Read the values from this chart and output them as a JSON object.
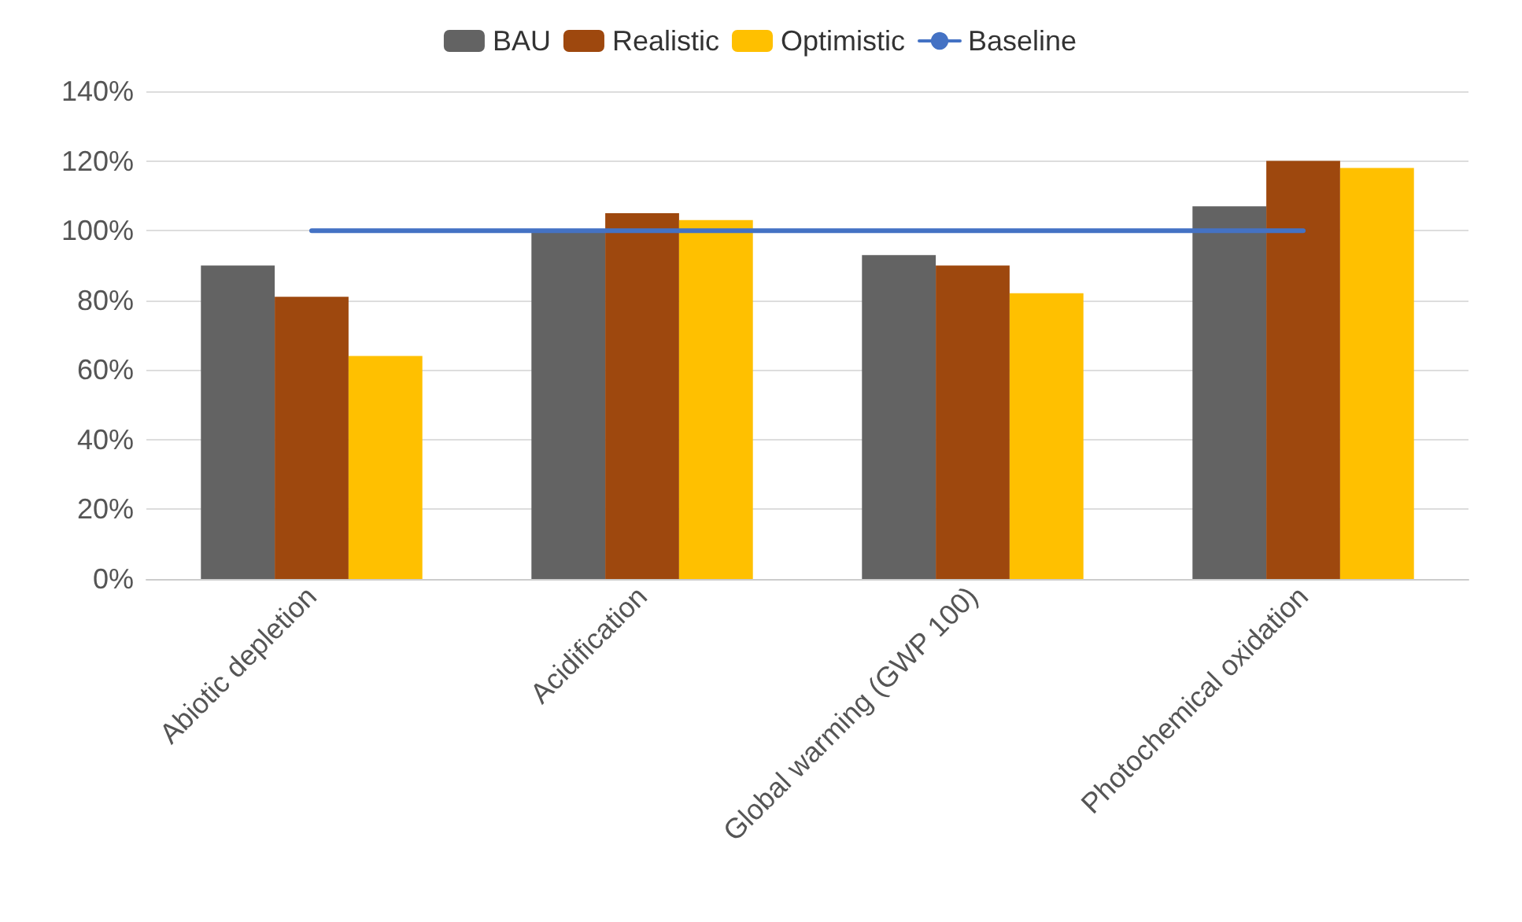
{
  "chart_data": {
    "type": "bar",
    "categories": [
      "Abiotic depletion",
      "Acidification",
      "Global warming (GWP 100)",
      "Photochemical oxidation"
    ],
    "series": [
      {
        "name": "BAU",
        "color": "#636363",
        "values": [
          90,
          100,
          93,
          107
        ]
      },
      {
        "name": "Realistic",
        "color": "#9e480e",
        "values": [
          81,
          105,
          90,
          120
        ]
      },
      {
        "name": "Optimistic",
        "color": "#ffc000",
        "values": [
          64,
          103,
          82,
          118
        ]
      },
      {
        "name": "Baseline",
        "type": "line",
        "color": "#4472c4",
        "values": [
          100,
          100,
          100,
          100
        ],
        "marker": "none",
        "line_style": "solid"
      }
    ],
    "ylim": [
      0,
      140
    ],
    "yticks": [
      {
        "value": 0,
        "label": "0%"
      },
      {
        "value": 20,
        "label": "20%"
      },
      {
        "value": 40,
        "label": "40%"
      },
      {
        "value": 60,
        "label": "60%"
      },
      {
        "value": 80,
        "label": "80%"
      },
      {
        "value": 100,
        "label": "100%"
      },
      {
        "value": 120,
        "label": "120%"
      },
      {
        "value": 140,
        "label": "140%"
      }
    ],
    "grid": "y",
    "legend": "top"
  }
}
